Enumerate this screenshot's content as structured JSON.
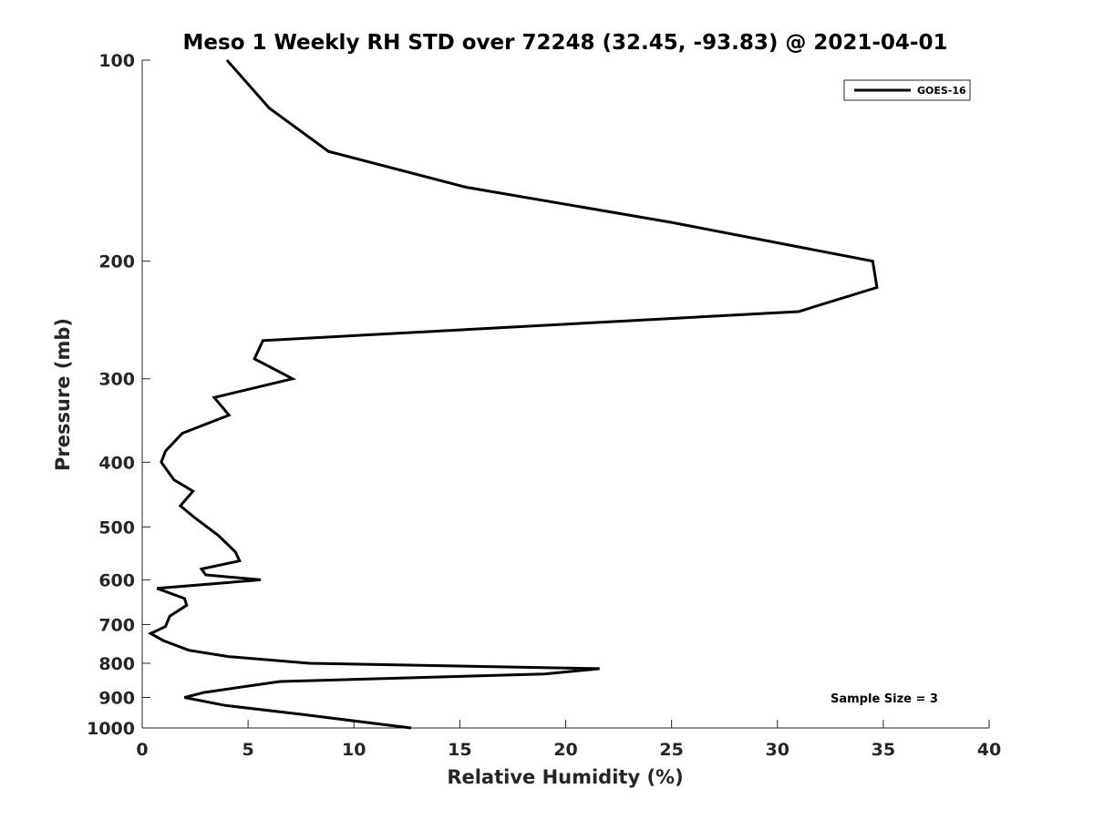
{
  "chart_data": {
    "type": "line",
    "title": "Meso 1 Weekly RH STD over 72248 (32.45, -93.83) @ 2021-04-01",
    "xlabel": "Relative Humidity (%)",
    "ylabel": "Pressure (mb)",
    "xlim": [
      0,
      40
    ],
    "ylim": [
      100,
      1000
    ],
    "y_scale": "log",
    "y_direction": "reversed",
    "x_ticks": [
      "0",
      "5",
      "10",
      "15",
      "20",
      "25",
      "30",
      "35",
      "40"
    ],
    "y_ticks": [
      "100",
      "200",
      "300",
      "400",
      "500",
      "600",
      "700",
      "800",
      "900",
      "1000"
    ],
    "grid": false,
    "legend": {
      "position": "top-right",
      "entries": [
        "GOES-16"
      ]
    },
    "annotation": "Sample Size = 3",
    "series": [
      {
        "name": "GOES-16",
        "color": "#000000",
        "points": [
          [
            4.0,
            100
          ],
          [
            6.0,
            118
          ],
          [
            8.8,
            137
          ],
          [
            15.3,
            155
          ],
          [
            25.0,
            175
          ],
          [
            34.5,
            200
          ],
          [
            34.7,
            219
          ],
          [
            31.0,
            238
          ],
          [
            5.7,
            263
          ],
          [
            5.3,
            280
          ],
          [
            7.1,
            300
          ],
          [
            3.4,
            320
          ],
          [
            4.1,
            340
          ],
          [
            1.9,
            362
          ],
          [
            1.1,
            385
          ],
          [
            0.9,
            400
          ],
          [
            1.5,
            425
          ],
          [
            2.4,
            442
          ],
          [
            1.8,
            465
          ],
          [
            2.5,
            485
          ],
          [
            3.6,
            515
          ],
          [
            4.4,
            545
          ],
          [
            4.6,
            562
          ],
          [
            2.8,
            578
          ],
          [
            3.0,
            590
          ],
          [
            5.6,
            600
          ],
          [
            0.7,
            618
          ],
          [
            2.0,
            640
          ],
          [
            2.1,
            655
          ],
          [
            1.3,
            680
          ],
          [
            1.1,
            705
          ],
          [
            0.4,
            722
          ],
          [
            1.0,
            740
          ],
          [
            2.2,
            765
          ],
          [
            4.1,
            782
          ],
          [
            7.9,
            800
          ],
          [
            21.6,
            815
          ],
          [
            19.0,
            830
          ],
          [
            6.5,
            852
          ],
          [
            2.9,
            885
          ],
          [
            2.0,
            900
          ],
          [
            3.9,
            925
          ],
          [
            7.6,
            955
          ],
          [
            12.7,
            1000
          ]
        ]
      }
    ]
  }
}
